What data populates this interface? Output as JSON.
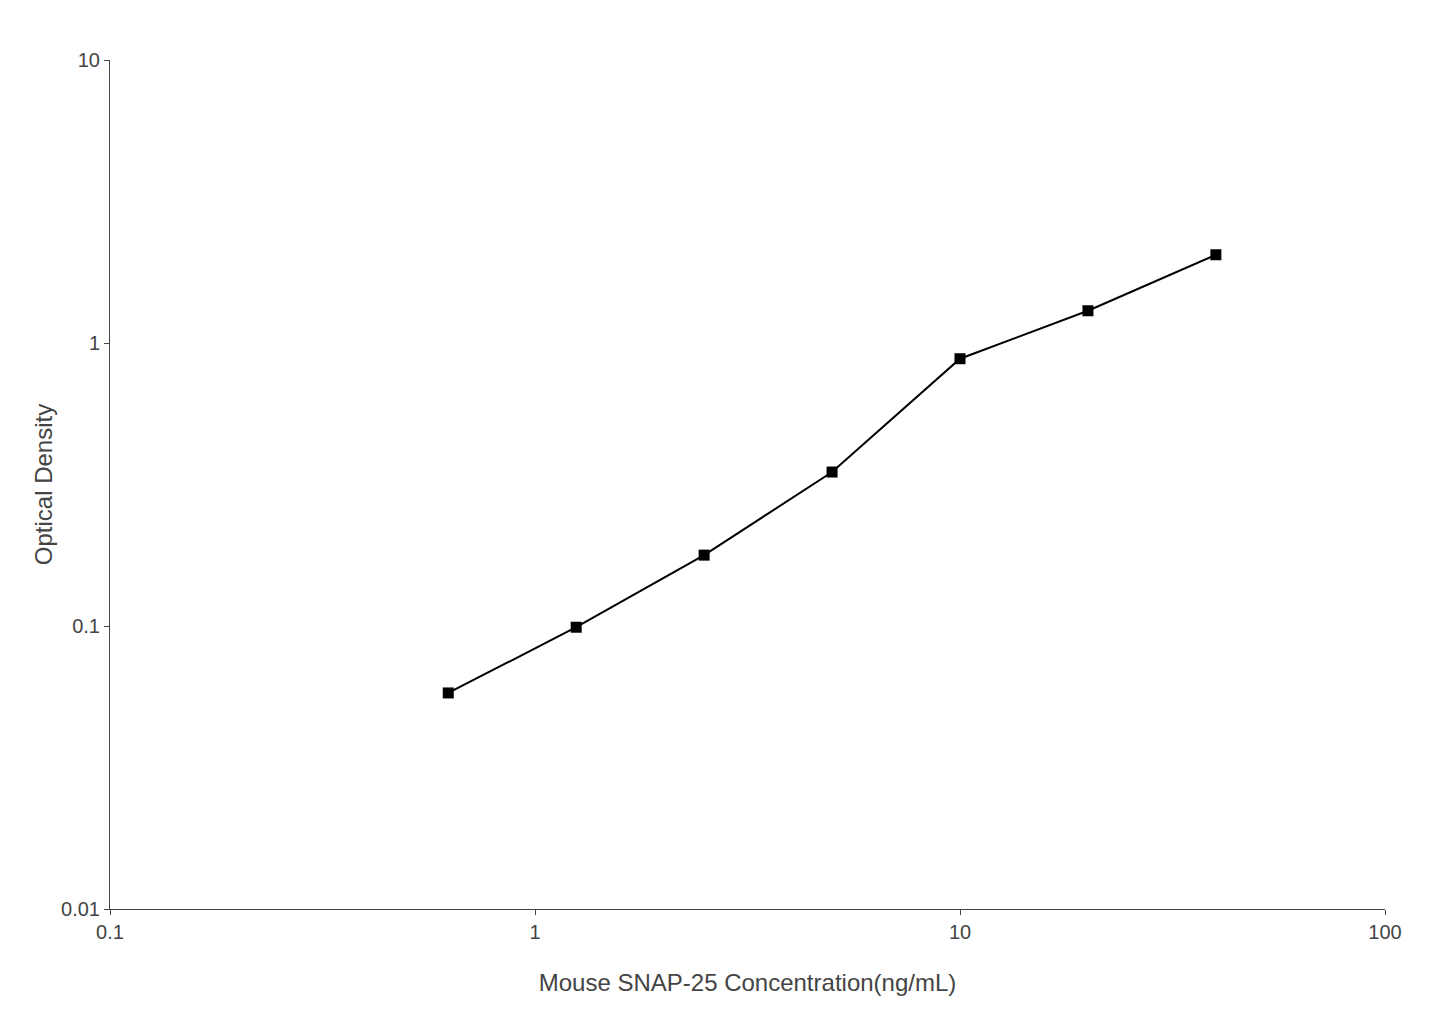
{
  "chart_data": {
    "type": "line",
    "xlabel": "Mouse SNAP-25 Concentration(ng/mL)",
    "ylabel": "Optical Density",
    "x": [
      0.625,
      1.25,
      2.5,
      5.0,
      10.0,
      20.0,
      40.0
    ],
    "values": [
      0.058,
      0.099,
      0.178,
      0.35,
      0.88,
      1.3,
      2.05
    ],
    "xlim": [
      0.1,
      100
    ],
    "ylim": [
      0.01,
      10
    ],
    "xticks": [
      0.1,
      1,
      10,
      100
    ],
    "yticks": [
      0.01,
      0.1,
      1,
      10
    ],
    "log": true,
    "grid": false,
    "color": "#000000",
    "marker": "square",
    "line_style": "solid"
  }
}
